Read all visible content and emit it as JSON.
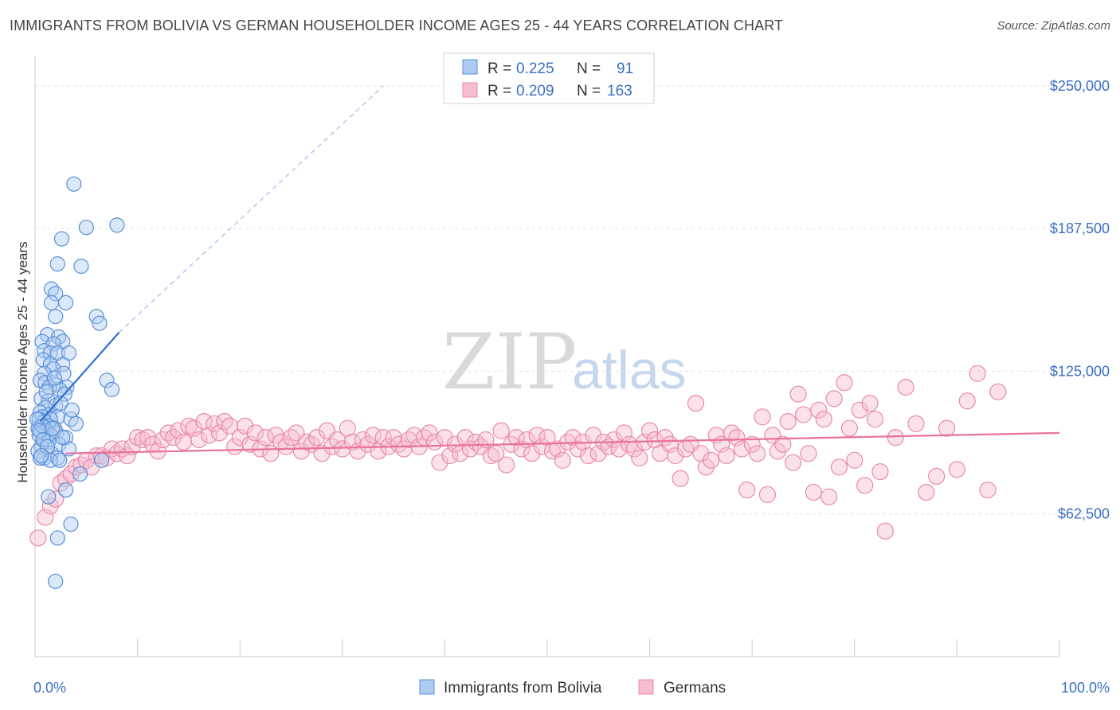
{
  "header": {
    "title": "IMMIGRANTS FROM BOLIVIA VS GERMAN HOUSEHOLDER INCOME AGES 25 - 44 YEARS CORRELATION CHART",
    "source": "Source: ZipAtlas.com"
  },
  "watermark": {
    "zip": "ZIP",
    "atlas": "atlas"
  },
  "legend": {
    "rows": [
      {
        "r_label": "R =",
        "r_value": "0.225",
        "n_label": "N =",
        "n_value": "91"
      },
      {
        "r_label": "R =",
        "r_value": "0.209",
        "n_label": "N =",
        "n_value": "163"
      }
    ]
  },
  "bottom_legend": {
    "items": [
      {
        "label": "Immigrants from Bolivia"
      },
      {
        "label": "Germans"
      }
    ]
  },
  "chart_data": {
    "type": "scatter",
    "title": "IMMIGRANTS FROM BOLIVIA VS GERMAN HOUSEHOLDER INCOME AGES 25 - 44 YEARS CORRELATION CHART",
    "xlabel": "",
    "ylabel": "Householder Income Ages 25 - 44 years",
    "xlim": [
      0,
      100
    ],
    "ylim": [
      0,
      262500
    ],
    "x_tick_labels": [
      "0.0%",
      "100.0%"
    ],
    "y_ticks": [
      62500,
      125000,
      187500,
      250000
    ],
    "y_tick_labels": [
      "$62,500",
      "$125,000",
      "$187,500",
      "$250,000"
    ],
    "grid": "horizontal dashed",
    "legend_position": "top-center",
    "colors": {
      "bolivia_fill": "#aecbf2",
      "bolivia_stroke": "#5b8fd6",
      "bolivia_line": "#2f6fd0",
      "german_fill": "#f7bcd0",
      "german_stroke": "#e88aab",
      "german_line": "#e8739c",
      "axis_label": "#3a6fc4"
    },
    "series": [
      {
        "name": "Immigrants from Bolivia",
        "r": 0.225,
        "n": 91,
        "trend": {
          "x0": 0.5,
          "y0": 103000,
          "x1": 8.2,
          "y1": 142000,
          "dashed_to_x": 34,
          "dashed_to_y": 250000
        },
        "points": [
          [
            3.8,
            207000
          ],
          [
            5.0,
            188000
          ],
          [
            8.0,
            189000
          ],
          [
            2.6,
            183000
          ],
          [
            2.2,
            172000
          ],
          [
            4.5,
            171000
          ],
          [
            1.6,
            161000
          ],
          [
            2.0,
            159000
          ],
          [
            3.0,
            155000
          ],
          [
            1.6,
            155000
          ],
          [
            6.0,
            149000
          ],
          [
            6.3,
            146000
          ],
          [
            2.0,
            149000
          ],
          [
            1.2,
            141000
          ],
          [
            2.3,
            140000
          ],
          [
            2.7,
            138000
          ],
          [
            0.7,
            138000
          ],
          [
            1.8,
            137000
          ],
          [
            0.9,
            134000
          ],
          [
            1.5,
            133000
          ],
          [
            2.2,
            133000
          ],
          [
            3.3,
            133000
          ],
          [
            0.8,
            130000
          ],
          [
            1.5,
            128000
          ],
          [
            2.7,
            128000
          ],
          [
            1.8,
            126000
          ],
          [
            0.9,
            124000
          ],
          [
            2.8,
            124000
          ],
          [
            0.5,
            121000
          ],
          [
            7.0,
            121000
          ],
          [
            1.0,
            120000
          ],
          [
            2.0,
            119000
          ],
          [
            3.1,
            118000
          ],
          [
            7.5,
            117000
          ],
          [
            1.4,
            118000
          ],
          [
            2.4,
            117000
          ],
          [
            2.9,
            115000
          ],
          [
            0.6,
            113000
          ],
          [
            1.3,
            112000
          ],
          [
            2.0,
            110000
          ],
          [
            1.0,
            109000
          ],
          [
            0.5,
            107000
          ],
          [
            1.4,
            106000
          ],
          [
            0.7,
            105000
          ],
          [
            2.2,
            105000
          ],
          [
            1.5,
            104000
          ],
          [
            3.5,
            104000
          ],
          [
            0.4,
            104000
          ],
          [
            0.9,
            103000
          ],
          [
            4.0,
            102000
          ],
          [
            0.8,
            101000
          ],
          [
            1.3,
            101000
          ],
          [
            0.3,
            100000
          ],
          [
            1.9,
            100000
          ],
          [
            0.6,
            99000
          ],
          [
            1.1,
            99000
          ],
          [
            2.1,
            98000
          ],
          [
            1.5,
            97000
          ],
          [
            0.4,
            97000
          ],
          [
            3.0,
            96000
          ],
          [
            0.8,
            95000
          ],
          [
            1.3,
            94000
          ],
          [
            2.3,
            93000
          ],
          [
            0.6,
            92000
          ],
          [
            3.3,
            91000
          ],
          [
            0.3,
            90000
          ],
          [
            1.6,
            89000
          ],
          [
            0.9,
            87000
          ],
          [
            2.2,
            87000
          ],
          [
            0.5,
            87000
          ],
          [
            1.5,
            86000
          ],
          [
            6.5,
            86000
          ],
          [
            2.4,
            86000
          ],
          [
            4.4,
            80000
          ],
          [
            3.0,
            73000
          ],
          [
            1.3,
            70000
          ],
          [
            3.5,
            58000
          ],
          [
            2.2,
            52000
          ],
          [
            2.0,
            33000
          ],
          [
            0.7,
            101000
          ],
          [
            0.2,
            104000
          ],
          [
            0.4,
            99000
          ],
          [
            1.9,
            122000
          ],
          [
            2.5,
            111000
          ],
          [
            1.1,
            116000
          ],
          [
            3.6,
            108000
          ],
          [
            0.8,
            95000
          ],
          [
            1.2,
            92000
          ],
          [
            2.7,
            96000
          ],
          [
            0.6,
            88000
          ],
          [
            1.7,
            100000
          ]
        ]
      },
      {
        "name": "Germans",
        "r": 0.209,
        "n": 163,
        "trend": {
          "x0": 3,
          "y0": 89000,
          "x1": 100,
          "y1": 98000
        },
        "points": [
          [
            0.3,
            52000
          ],
          [
            1.0,
            61000
          ],
          [
            1.5,
            66000
          ],
          [
            2.0,
            69000
          ],
          [
            2.5,
            76000
          ],
          [
            3.0,
            78000
          ],
          [
            3.5,
            80000
          ],
          [
            4.0,
            83000
          ],
          [
            4.5,
            84000
          ],
          [
            5.0,
            86000
          ],
          [
            5.5,
            83000
          ],
          [
            6.0,
            88000
          ],
          [
            6.5,
            88000
          ],
          [
            7.0,
            87000
          ],
          [
            7.5,
            91000
          ],
          [
            8.0,
            89000
          ],
          [
            8.5,
            91000
          ],
          [
            9.0,
            88000
          ],
          [
            9.5,
            92000
          ],
          [
            10.0,
            96000
          ],
          [
            10.5,
            95000
          ],
          [
            11.0,
            96000
          ],
          [
            11.5,
            93000
          ],
          [
            12.0,
            90000
          ],
          [
            12.5,
            95000
          ],
          [
            13.0,
            98000
          ],
          [
            13.5,
            96000
          ],
          [
            14.0,
            99000
          ],
          [
            14.5,
            94000
          ],
          [
            15.0,
            101000
          ],
          [
            15.5,
            100000
          ],
          [
            16.0,
            95000
          ],
          [
            16.5,
            103000
          ],
          [
            17.0,
            97000
          ],
          [
            17.5,
            102000
          ],
          [
            18.0,
            98000
          ],
          [
            18.5,
            103000
          ],
          [
            19.0,
            101000
          ],
          [
            19.5,
            92000
          ],
          [
            20.0,
            96000
          ],
          [
            20.5,
            101000
          ],
          [
            21.0,
            93000
          ],
          [
            21.5,
            98000
          ],
          [
            22.0,
            91000
          ],
          [
            22.5,
            96000
          ],
          [
            23.0,
            89000
          ],
          [
            23.5,
            97000
          ],
          [
            24.0,
            94000
          ],
          [
            24.5,
            92000
          ],
          [
            25.0,
            96000
          ],
          [
            25.5,
            98000
          ],
          [
            26.0,
            90000
          ],
          [
            26.5,
            94000
          ],
          [
            27.0,
            93000
          ],
          [
            27.5,
            96000
          ],
          [
            28.0,
            89000
          ],
          [
            28.5,
            99000
          ],
          [
            29.0,
            92000
          ],
          [
            29.5,
            95000
          ],
          [
            30.0,
            91000
          ],
          [
            30.5,
            100000
          ],
          [
            31.0,
            94000
          ],
          [
            31.5,
            90000
          ],
          [
            32.0,
            95000
          ],
          [
            32.5,
            93000
          ],
          [
            33.0,
            97000
          ],
          [
            33.5,
            90000
          ],
          [
            34.0,
            96000
          ],
          [
            34.5,
            92000
          ],
          [
            35.0,
            96000
          ],
          [
            35.5,
            93000
          ],
          [
            36.0,
            91000
          ],
          [
            36.5,
            95000
          ],
          [
            37.0,
            97000
          ],
          [
            37.5,
            92000
          ],
          [
            38.0,
            96000
          ],
          [
            38.5,
            98000
          ],
          [
            39.0,
            94000
          ],
          [
            39.5,
            85000
          ],
          [
            40.0,
            96000
          ],
          [
            40.5,
            88000
          ],
          [
            41.0,
            93000
          ],
          [
            41.5,
            89000
          ],
          [
            42.0,
            96000
          ],
          [
            42.5,
            91000
          ],
          [
            43.0,
            94000
          ],
          [
            43.5,
            92000
          ],
          [
            44.0,
            95000
          ],
          [
            44.5,
            88000
          ],
          [
            45.0,
            89000
          ],
          [
            45.5,
            99000
          ],
          [
            46.0,
            84000
          ],
          [
            46.5,
            93000
          ],
          [
            47.0,
            96000
          ],
          [
            47.5,
            91000
          ],
          [
            48.0,
            95000
          ],
          [
            48.5,
            89000
          ],
          [
            49.0,
            97000
          ],
          [
            49.5,
            92000
          ],
          [
            50.0,
            96000
          ],
          [
            50.5,
            90000
          ],
          [
            51.0,
            91000
          ],
          [
            51.5,
            86000
          ],
          [
            52.0,
            94000
          ],
          [
            52.5,
            96000
          ],
          [
            53.0,
            91000
          ],
          [
            53.5,
            94000
          ],
          [
            54.0,
            88000
          ],
          [
            54.5,
            97000
          ],
          [
            55.0,
            89000
          ],
          [
            55.5,
            94000
          ],
          [
            56.0,
            92000
          ],
          [
            56.5,
            95000
          ],
          [
            57.0,
            91000
          ],
          [
            57.5,
            98000
          ],
          [
            58.0,
            93000
          ],
          [
            58.5,
            91000
          ],
          [
            59.0,
            87000
          ],
          [
            59.5,
            94000
          ],
          [
            60.0,
            99000
          ],
          [
            60.5,
            95000
          ],
          [
            61.0,
            89000
          ],
          [
            61.5,
            96000
          ],
          [
            62.0,
            93000
          ],
          [
            62.5,
            88000
          ],
          [
            63.0,
            78000
          ],
          [
            63.5,
            91000
          ],
          [
            64.0,
            93000
          ],
          [
            64.5,
            111000
          ],
          [
            65.0,
            89000
          ],
          [
            65.5,
            83000
          ],
          [
            66.0,
            86000
          ],
          [
            66.5,
            97000
          ],
          [
            67.0,
            93000
          ],
          [
            67.5,
            88000
          ],
          [
            68.0,
            98000
          ],
          [
            68.5,
            96000
          ],
          [
            69.0,
            91000
          ],
          [
            69.5,
            73000
          ],
          [
            70.0,
            93000
          ],
          [
            70.5,
            89000
          ],
          [
            71.0,
            105000
          ],
          [
            71.5,
            71000
          ],
          [
            72.0,
            97000
          ],
          [
            72.5,
            90000
          ],
          [
            73.0,
            93000
          ],
          [
            73.5,
            103000
          ],
          [
            74.0,
            85000
          ],
          [
            74.5,
            115000
          ],
          [
            75.0,
            106000
          ],
          [
            75.5,
            89000
          ],
          [
            76.0,
            72000
          ],
          [
            76.5,
            108000
          ],
          [
            77.0,
            104000
          ],
          [
            77.5,
            70000
          ],
          [
            78.0,
            113000
          ],
          [
            78.5,
            83000
          ],
          [
            79.0,
            120000
          ],
          [
            79.5,
            100000
          ],
          [
            80.0,
            86000
          ],
          [
            80.5,
            108000
          ],
          [
            81.0,
            75000
          ],
          [
            81.5,
            111000
          ],
          [
            82.0,
            104000
          ],
          [
            82.5,
            81000
          ],
          [
            83.0,
            55000
          ],
          [
            84.0,
            96000
          ],
          [
            85.0,
            118000
          ],
          [
            86.0,
            102000
          ],
          [
            87.0,
            72000
          ],
          [
            88.0,
            79000
          ],
          [
            89.0,
            100000
          ],
          [
            90.0,
            82000
          ],
          [
            91.0,
            112000
          ],
          [
            92.0,
            124000
          ],
          [
            93.0,
            73000
          ],
          [
            94.0,
            116000
          ]
        ]
      }
    ]
  }
}
